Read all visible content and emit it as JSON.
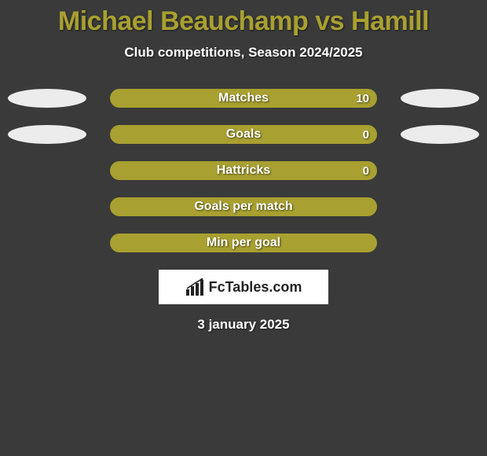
{
  "title": {
    "player1": "Michael Beauchamp",
    "vs": "vs",
    "player2": "Hamill",
    "color": "#a8a030",
    "fontsize": 34
  },
  "subtitle": "Club competitions, Season 2024/2025",
  "bar_color": "#a8a030",
  "ellipse_color": "#ececec",
  "background_color": "#3a3a3a",
  "rows": [
    {
      "label": "Matches",
      "value": "10",
      "left_ellipse": true,
      "right_ellipse": true
    },
    {
      "label": "Goals",
      "value": "0",
      "left_ellipse": true,
      "right_ellipse": true
    },
    {
      "label": "Hattricks",
      "value": "0",
      "left_ellipse": false,
      "right_ellipse": false
    },
    {
      "label": "Goals per match",
      "value": "",
      "left_ellipse": false,
      "right_ellipse": false
    },
    {
      "label": "Min per goal",
      "value": "",
      "left_ellipse": false,
      "right_ellipse": false
    }
  ],
  "logo_text": "FcTables.com",
  "date": "3 january 2025"
}
